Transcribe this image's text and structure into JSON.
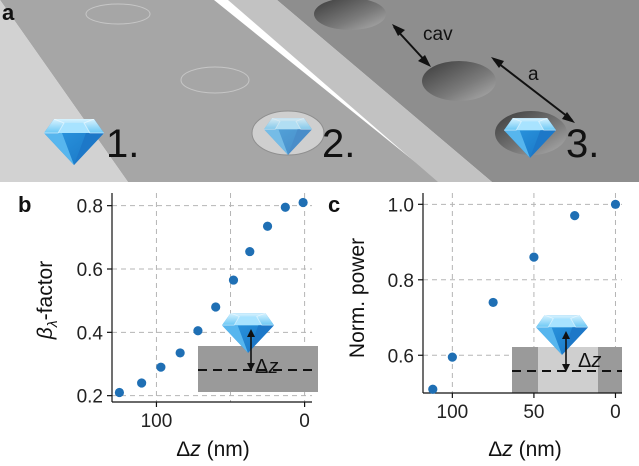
{
  "panel_a": {
    "letter": "a",
    "steps": [
      "1.",
      "2.",
      "3."
    ],
    "annotation_cav": "cav",
    "annotation_a": "a"
  },
  "chart_data": [
    {
      "panel": "b",
      "type": "scatter",
      "title": "",
      "xlabel": "Δz (nm)",
      "ylabel": "βλ-factor",
      "xlim": [
        130,
        -5
      ],
      "ylim": [
        0.18,
        0.84
      ],
      "xticks": [
        100,
        0
      ],
      "xtick_labels": [
        "100",
        "0"
      ],
      "yticks": [
        0.2,
        0.4,
        0.6,
        0.8
      ],
      "ytick_labels": [
        "0.2",
        "0.4",
        "0.6",
        "0.8"
      ],
      "x_minor_grid": [
        50
      ],
      "grid": true,
      "marker_color": "#1f6fb4",
      "inset_label": "Δz",
      "series": [
        {
          "x": [
            125,
            110,
            97,
            84,
            72,
            60,
            48,
            37,
            25,
            13,
            1
          ],
          "y": [
            0.21,
            0.24,
            0.29,
            0.335,
            0.405,
            0.48,
            0.565,
            0.655,
            0.735,
            0.795,
            0.81
          ]
        }
      ]
    },
    {
      "panel": "c",
      "type": "scatter",
      "title": "",
      "xlabel": "Δz (nm)",
      "ylabel": "Norm. power",
      "xlim": [
        118,
        -4
      ],
      "ylim": [
        0.5,
        1.03
      ],
      "xticks": [
        100,
        50,
        0
      ],
      "xtick_labels": [
        "100",
        "50",
        "0"
      ],
      "yticks": [
        0.6,
        0.8,
        1.0
      ],
      "ytick_labels": [
        "0.6",
        "0.8",
        "1.0"
      ],
      "x_minor_grid": [],
      "grid": true,
      "marker_color": "#1f6fb4",
      "inset_label": "Δz",
      "series": [
        {
          "x": [
            112,
            100,
            75,
            50,
            25,
            0
          ],
          "y": [
            0.51,
            0.595,
            0.74,
            0.86,
            0.97,
            1.0
          ]
        }
      ]
    }
  ]
}
